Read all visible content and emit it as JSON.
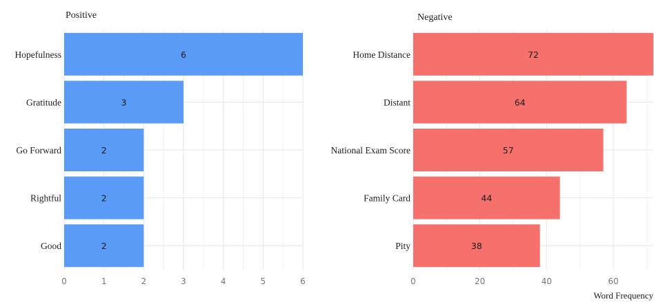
{
  "chart_data": [
    {
      "type": "bar",
      "orientation": "horizontal",
      "title": "Positive",
      "xlabel": "",
      "ylabel": "",
      "categories": [
        "Hopefulness",
        "Gratitude",
        "Go Forward",
        "Rightful",
        "Good"
      ],
      "values": [
        6,
        3,
        2,
        2,
        2
      ],
      "xlim": [
        0,
        6
      ],
      "xticks": [
        0,
        1,
        2,
        3,
        4,
        5,
        6
      ],
      "grid": true,
      "bar_color": "#5b9bf8",
      "data_labels": true
    },
    {
      "type": "bar",
      "orientation": "horizontal",
      "title": "Negative",
      "xlabel": "Word Frequency",
      "ylabel": "",
      "categories": [
        "Home Distance",
        "Distant",
        "National Exam Score",
        "Family Card",
        "Pity"
      ],
      "values": [
        72,
        64,
        57,
        44,
        38
      ],
      "xlim": [
        0,
        72
      ],
      "xticks": [
        0,
        20,
        40,
        60
      ],
      "grid": true,
      "bar_color": "#f7716c",
      "data_labels": true
    }
  ]
}
